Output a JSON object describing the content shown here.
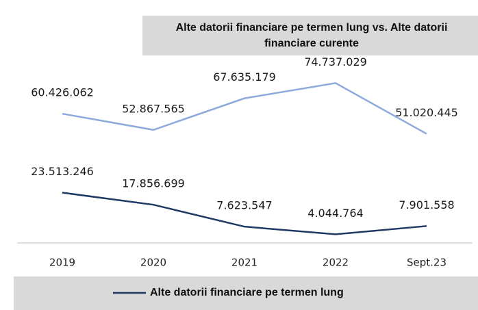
{
  "chart_data": {
    "type": "line",
    "title": "Alte datorii financiare pe termen lung vs. Alte datorii financiare curente",
    "title_lines": [
      "Alte datorii financiare pe termen lung vs. Alte datorii",
      "financiare curente"
    ],
    "categories": [
      "2019",
      "2020",
      "2021",
      "2022",
      "Sept.23"
    ],
    "ylim": [
      0,
      80
    ],
    "legend": "bottom",
    "series": [
      {
        "name": "Alte datorii financiare pe termen lung",
        "color": "#1f3864",
        "values": [
          23513246,
          17856699,
          7623547,
          4044764,
          7901558
        ],
        "value_labels": [
          "23.513.246",
          "17.856.699",
          "7.623.547",
          "4.044.764",
          "7.901.558"
        ]
      },
      {
        "color": "#8eaadb",
        "values": [
          60426062,
          52867565,
          67635179,
          74737029,
          51020445
        ],
        "value_labels": [
          "60.426.062",
          "52.867.565",
          "67.635.179",
          "74.737.029",
          "51.020.445"
        ]
      }
    ]
  }
}
